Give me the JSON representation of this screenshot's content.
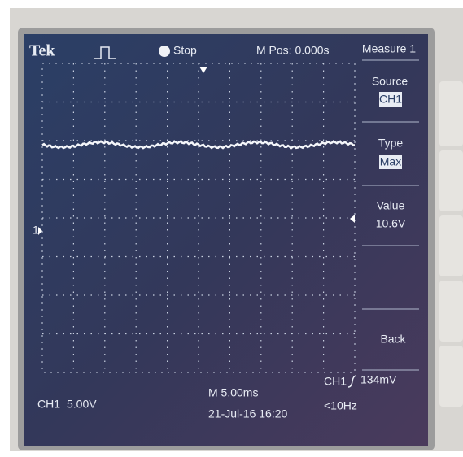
{
  "header": {
    "brand": "Tek",
    "status": "Stop",
    "position": "M Pos: 0.000s"
  },
  "menu": {
    "title": "Measure 1",
    "items": [
      {
        "label": "Source",
        "value": "CH1"
      },
      {
        "label": "Type",
        "value": "Max"
      },
      {
        "label": "Value",
        "value": "10.6V"
      },
      {
        "label": "Back"
      }
    ]
  },
  "markers": {
    "channel": "1"
  },
  "footer": {
    "channel": "CH1",
    "scale": "5.00V",
    "timebase": "M 5.00ms",
    "datetime": "21-Jul-16 16:20",
    "trigger_channel": "CH1",
    "trigger_level": "134mV",
    "frequency": "<10Hz"
  }
}
